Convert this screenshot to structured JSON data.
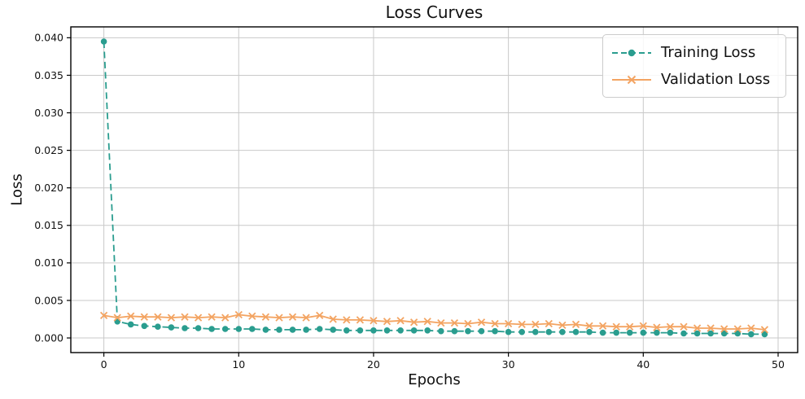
{
  "chart_data": {
    "type": "line",
    "title": "Loss Curves",
    "xlabel": "Epochs",
    "ylabel": "Loss",
    "x": [
      0,
      1,
      2,
      3,
      4,
      5,
      6,
      7,
      8,
      9,
      10,
      11,
      12,
      13,
      14,
      15,
      16,
      17,
      18,
      19,
      20,
      21,
      22,
      23,
      24,
      25,
      26,
      27,
      28,
      29,
      30,
      31,
      32,
      33,
      34,
      35,
      36,
      37,
      38,
      39,
      40,
      41,
      42,
      43,
      44,
      45,
      46,
      47,
      48,
      49
    ],
    "series": [
      {
        "name": "Training Loss",
        "color": "#2a9d8f",
        "line_style": "dashed",
        "marker": "circle",
        "values": [
          0.0395,
          0.0022,
          0.0018,
          0.0016,
          0.0015,
          0.0014,
          0.0013,
          0.0013,
          0.0012,
          0.0012,
          0.0012,
          0.0012,
          0.0011,
          0.0011,
          0.0011,
          0.0011,
          0.0012,
          0.0011,
          0.001,
          0.001,
          0.001,
          0.001,
          0.001,
          0.001,
          0.001,
          0.0009,
          0.0009,
          0.0009,
          0.0009,
          0.0009,
          0.0008,
          0.0008,
          0.0008,
          0.0008,
          0.0008,
          0.0008,
          0.0008,
          0.0007,
          0.0007,
          0.0007,
          0.0007,
          0.0007,
          0.0007,
          0.0006,
          0.0006,
          0.0006,
          0.0006,
          0.0006,
          0.0005,
          0.0005
        ]
      },
      {
        "name": "Validation Loss",
        "color": "#f3a462",
        "line_style": "solid",
        "marker": "x",
        "values": [
          0.003,
          0.0027,
          0.0029,
          0.0028,
          0.0028,
          0.0027,
          0.0028,
          0.0027,
          0.0028,
          0.0027,
          0.0031,
          0.0029,
          0.0028,
          0.0027,
          0.0028,
          0.0027,
          0.003,
          0.0025,
          0.0024,
          0.0024,
          0.0023,
          0.0022,
          0.0023,
          0.0021,
          0.0022,
          0.002,
          0.002,
          0.0019,
          0.0021,
          0.0019,
          0.0019,
          0.0018,
          0.0018,
          0.0019,
          0.0017,
          0.0018,
          0.0016,
          0.0016,
          0.0015,
          0.0015,
          0.0016,
          0.0014,
          0.0015,
          0.0015,
          0.0013,
          0.0013,
          0.0012,
          0.0012,
          0.0013,
          0.0011
        ]
      }
    ],
    "xticks": [
      0,
      10,
      20,
      30,
      40,
      50
    ],
    "yticks": [
      0.0,
      0.005,
      0.01,
      0.015,
      0.02,
      0.025,
      0.03,
      0.035,
      0.04
    ],
    "ytick_decimals": 3,
    "xlim": [
      -2.45,
      51.45
    ],
    "ylim": [
      -0.00195,
      0.04145
    ],
    "grid": true,
    "legend_position": "upper right",
    "colors": {
      "grid": "#c9c9c9",
      "axis": "#000000",
      "text": "#111111",
      "background": "#ffffff"
    }
  }
}
